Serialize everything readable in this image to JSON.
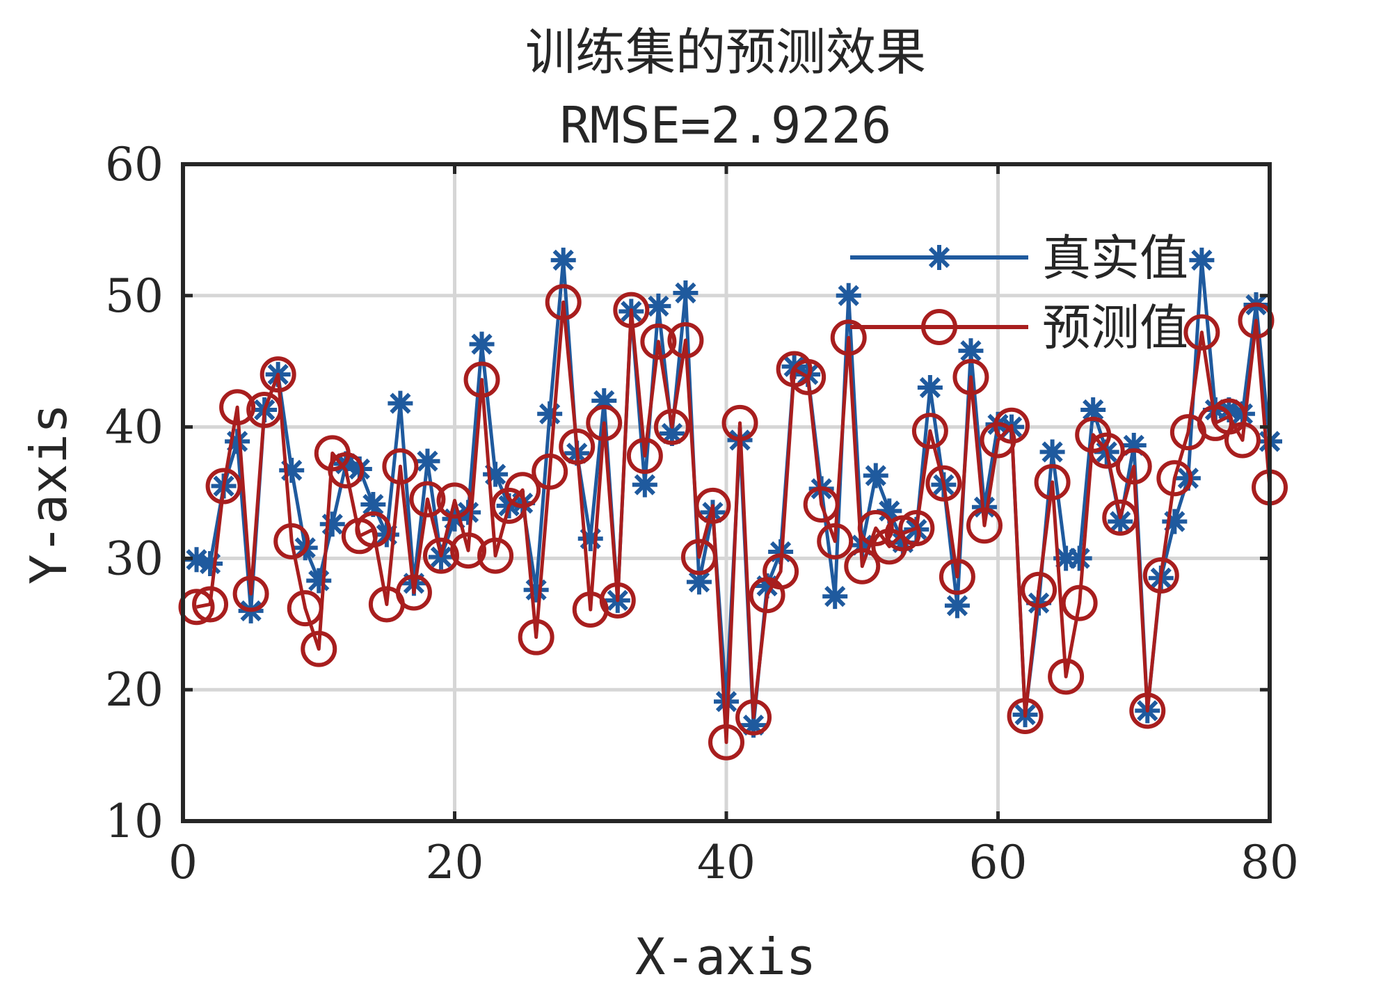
{
  "chart_data": {
    "type": "line",
    "title": "训练集的预测效果",
    "subtitle": "RMSE=2.9226",
    "xlabel": "X-axis",
    "ylabel": "Y-axis",
    "xlim": [
      0,
      80
    ],
    "ylim": [
      10,
      60
    ],
    "xticks": [
      "0",
      "20",
      "40",
      "60",
      "80"
    ],
    "yticks": [
      "10",
      "20",
      "30",
      "40",
      "50",
      "60"
    ],
    "grid": true,
    "legend_position": "top-right",
    "x": [
      1,
      2,
      3,
      4,
      5,
      6,
      7,
      8,
      9,
      10,
      11,
      12,
      13,
      14,
      15,
      16,
      17,
      18,
      19,
      20,
      21,
      22,
      23,
      24,
      25,
      26,
      27,
      28,
      29,
      30,
      31,
      32,
      33,
      34,
      35,
      36,
      37,
      38,
      39,
      40,
      41,
      42,
      43,
      44,
      45,
      46,
      47,
      48,
      49,
      50,
      51,
      52,
      53,
      54,
      55,
      56,
      57,
      58,
      59,
      60,
      61,
      62,
      63,
      64,
      65,
      66,
      67,
      68,
      69,
      70,
      71,
      72,
      73,
      74,
      75,
      76,
      77,
      78,
      79,
      80
    ],
    "series": [
      {
        "name": "真实值",
        "color": "#1f5a9e",
        "marker": "asterisk",
        "values": [
          29.9,
          29.6,
          35.5,
          38.9,
          26.0,
          41.3,
          44.0,
          36.7,
          30.8,
          28.3,
          32.6,
          37.2,
          36.8,
          34.1,
          31.8,
          41.8,
          28.1,
          37.4,
          30.1,
          33.0,
          33.5,
          46.3,
          36.4,
          34.0,
          34.2,
          27.6,
          41.0,
          52.7,
          38.0,
          31.5,
          42.0,
          26.8,
          48.8,
          35.6,
          49.2,
          39.5,
          50.2,
          28.2,
          33.5,
          19.1,
          39.0,
          17.3,
          27.9,
          30.5,
          44.6,
          44.0,
          35.3,
          27.1,
          50.0,
          31.0,
          36.3,
          33.6,
          31.2,
          32.2,
          43.0,
          35.6,
          26.4,
          45.8,
          33.9,
          40.2,
          40.0,
          18.1,
          26.6,
          38.1,
          30.0,
          30.0,
          41.3,
          38.1,
          32.8,
          38.6,
          18.4,
          28.5,
          32.8,
          36.1,
          52.7,
          41.3,
          41.3,
          41.0,
          49.3,
          38.9
        ]
      },
      {
        "name": "预测值",
        "color": "#a81e1e",
        "marker": "circle",
        "values": [
          26.3,
          26.5,
          35.5,
          41.5,
          27.3,
          41.3,
          44.0,
          31.3,
          26.2,
          23.1,
          38.0,
          36.7,
          31.7,
          32.2,
          26.5,
          37.0,
          27.4,
          34.5,
          30.2,
          34.4,
          30.6,
          43.6,
          30.2,
          34.0,
          35.2,
          24.0,
          36.6,
          49.5,
          38.5,
          26.1,
          40.3,
          26.8,
          48.9,
          37.8,
          46.5,
          40.0,
          46.6,
          30.1,
          34.0,
          16.0,
          40.3,
          17.9,
          27.2,
          29.0,
          44.4,
          43.8,
          34.1,
          31.3,
          46.8,
          29.4,
          32.3,
          30.9,
          31.9,
          32.3,
          39.7,
          35.7,
          28.6,
          43.8,
          32.5,
          39.0,
          40.1,
          18.0,
          27.6,
          35.8,
          21.0,
          26.6,
          39.4,
          38.2,
          33.1,
          37.0,
          18.4,
          28.7,
          36.1,
          39.6,
          47.2,
          40.3,
          40.8,
          39.0,
          48.1,
          35.4
        ]
      }
    ]
  }
}
